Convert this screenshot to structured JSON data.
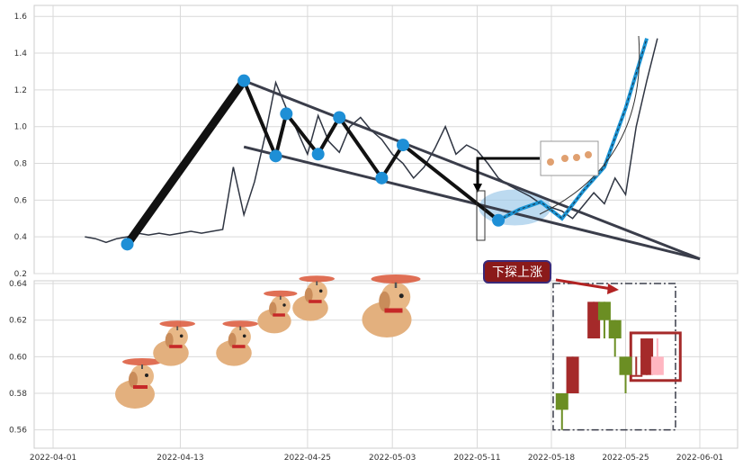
{
  "chart_data": [
    {
      "type": "line",
      "ylim": [
        0.2,
        1.65
      ],
      "yticks": [
        "0.2",
        "0.4",
        "0.6",
        "0.8",
        "1.0",
        "1.2",
        "1.4",
        "1.6"
      ],
      "grid": true,
      "price_series": [
        [
          "2022-04-04",
          0.4
        ],
        [
          "2022-04-05",
          0.39
        ],
        [
          "2022-04-06",
          0.37
        ],
        [
          "2022-04-07",
          0.39
        ],
        [
          "2022-04-08",
          0.4
        ],
        [
          "2022-04-09",
          0.42
        ],
        [
          "2022-04-10",
          0.41
        ],
        [
          "2022-04-11",
          0.42
        ],
        [
          "2022-04-12",
          0.41
        ],
        [
          "2022-04-13",
          0.42
        ],
        [
          "2022-04-14",
          0.43
        ],
        [
          "2022-04-15",
          0.42
        ],
        [
          "2022-04-16",
          0.43
        ],
        [
          "2022-04-17",
          0.44
        ],
        [
          "2022-04-18",
          0.78
        ],
        [
          "2022-04-19",
          0.52
        ],
        [
          "2022-04-20",
          0.7
        ],
        [
          "2022-04-21",
          0.95
        ],
        [
          "2022-04-22",
          1.24
        ],
        [
          "2022-04-23",
          1.1
        ],
        [
          "2022-04-24",
          0.98
        ],
        [
          "2022-04-25",
          0.85
        ],
        [
          "2022-04-26",
          1.06
        ],
        [
          "2022-04-27",
          0.92
        ],
        [
          "2022-04-28",
          0.86
        ],
        [
          "2022-04-29",
          1.0
        ],
        [
          "2022-04-30",
          1.05
        ],
        [
          "2022-05-01",
          0.98
        ],
        [
          "2022-05-02",
          0.93
        ],
        [
          "2022-05-03",
          0.85
        ],
        [
          "2022-05-04",
          0.8
        ],
        [
          "2022-05-05",
          0.72
        ],
        [
          "2022-05-06",
          0.78
        ],
        [
          "2022-05-07",
          0.88
        ],
        [
          "2022-05-08",
          1.0
        ],
        [
          "2022-05-09",
          0.85
        ],
        [
          "2022-05-10",
          0.9
        ],
        [
          "2022-05-11",
          0.87
        ],
        [
          "2022-05-12",
          0.8
        ],
        [
          "2022-05-13",
          0.72
        ],
        [
          "2022-05-14",
          0.68
        ],
        [
          "2022-05-15",
          0.65
        ],
        [
          "2022-05-16",
          0.62
        ],
        [
          "2022-05-17",
          0.58
        ],
        [
          "2022-05-18",
          0.56
        ],
        [
          "2022-05-19",
          0.54
        ],
        [
          "2022-05-20",
          0.5
        ],
        [
          "2022-05-21",
          0.57
        ],
        [
          "2022-05-22",
          0.64
        ],
        [
          "2022-05-23",
          0.58
        ],
        [
          "2022-05-24",
          0.72
        ],
        [
          "2022-05-25",
          0.63
        ],
        [
          "2022-05-26",
          1.0
        ],
        [
          "2022-05-27",
          1.25
        ],
        [
          "2022-05-28",
          1.48
        ]
      ],
      "zigzag": [
        [
          "2022-04-08",
          0.36
        ],
        [
          "2022-04-19",
          1.25
        ],
        [
          "2022-04-22",
          0.84
        ],
        [
          "2022-04-23",
          1.07
        ],
        [
          "2022-04-26",
          0.85
        ],
        [
          "2022-04-28",
          1.05
        ],
        [
          "2022-05-02",
          0.72
        ],
        [
          "2022-05-04",
          0.9
        ],
        [
          "2022-05-13",
          0.49
        ]
      ],
      "forecast_path": [
        [
          "2022-05-13",
          0.49
        ],
        [
          "2022-05-15",
          0.55
        ],
        [
          "2022-05-17",
          0.59
        ],
        [
          "2022-05-19",
          0.5
        ],
        [
          "2022-05-21",
          0.65
        ],
        [
          "2022-05-23",
          0.78
        ],
        [
          "2022-05-25",
          1.1
        ],
        [
          "2022-05-27",
          1.48
        ]
      ],
      "trend_upper": [
        [
          "2022-04-19",
          1.25
        ],
        [
          "2022-06-01",
          0.28
        ]
      ],
      "trend_lower": [
        [
          "2022-04-19",
          0.89
        ],
        [
          "2022-06-01",
          0.28
        ]
      ],
      "highlight_ellipse_center": [
        "2022-05-12",
        0.56
      ]
    },
    {
      "type": "candlestick",
      "ylim": [
        0.55,
        0.641
      ],
      "yticks": [
        "0.56",
        "0.58",
        "0.60",
        "0.62",
        "0.64"
      ],
      "xticks": [
        "2022-04-01",
        "2022-04-13",
        "2022-04-25",
        "2022-05-03",
        "2022-05-11",
        "2022-05-18",
        "2022-05-25",
        "2022-06-01"
      ],
      "candles": [
        {
          "date": "2022-05-19",
          "open": 0.58,
          "close": 0.571,
          "high": 0.58,
          "low": 0.56,
          "color": "#6b8e23"
        },
        {
          "date": "2022-05-20",
          "open": 0.58,
          "close": 0.6,
          "high": 0.6,
          "low": 0.58,
          "color": "#a52a2a"
        },
        {
          "date": "2022-05-22",
          "open": 0.61,
          "close": 0.63,
          "high": 0.63,
          "low": 0.61,
          "color": "#a52a2a"
        },
        {
          "date": "2022-05-23",
          "open": 0.63,
          "close": 0.62,
          "high": 0.63,
          "low": 0.61,
          "color": "#6b8e23"
        },
        {
          "date": "2022-05-24",
          "open": 0.62,
          "close": 0.61,
          "high": 0.62,
          "low": 0.6,
          "color": "#6b8e23"
        },
        {
          "date": "2022-05-25",
          "open": 0.6,
          "close": 0.59,
          "high": 0.6,
          "low": 0.58,
          "color": "#6b8e23"
        },
        {
          "date": "2022-05-26",
          "open": 0.59,
          "close": 0.59,
          "high": 0.6,
          "low": 0.59,
          "color": "#a52a2a"
        },
        {
          "date": "2022-05-27",
          "open": 0.59,
          "close": 0.61,
          "high": 0.61,
          "low": 0.59,
          "color": "#a52a2a"
        },
        {
          "date": "2022-05-28",
          "open": 0.59,
          "close": 0.6,
          "high": 0.61,
          "low": 0.59,
          "color": "#ffb6c1"
        }
      ],
      "annotation": "下探上涨"
    }
  ],
  "colors": {
    "axes_border": "#cccccc",
    "grid": "#d9d9d9",
    "price_line": "#2f3542",
    "zigzag": "#111111",
    "trend": "#3a3d4a",
    "pivot": "#1e8fd6",
    "forecast": "#1b94d4",
    "up_candle": "#a52a2a",
    "down_candle": "#6b8e23",
    "annotation_bg": "#8b1a1a",
    "annotation_border": "#3a2a7a",
    "highlight_box": "#a52a2a",
    "dashed_box": "#3a3d4a"
  }
}
